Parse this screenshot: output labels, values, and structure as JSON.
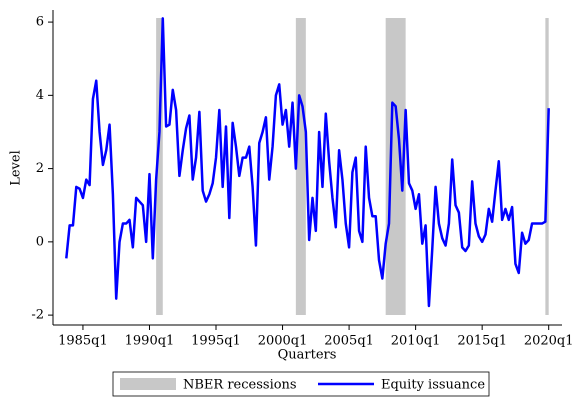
{
  "chart_data": {
    "type": "line",
    "x_label": "Quarters",
    "y_label": "Level",
    "x": [
      "1983q4",
      "1984q1",
      "1984q2",
      "1984q3",
      "1984q4",
      "1985q1",
      "1985q2",
      "1985q3",
      "1985q4",
      "1986q1",
      "1986q2",
      "1986q3",
      "1986q4",
      "1987q1",
      "1987q2",
      "1987q3",
      "1987q4",
      "1988q1",
      "1988q2",
      "1988q3",
      "1988q4",
      "1989q1",
      "1989q2",
      "1989q3",
      "1989q4",
      "1990q1",
      "1990q2",
      "1990q3",
      "1990q4",
      "1991q1",
      "1991q2",
      "1991q3",
      "1991q4",
      "1992q1",
      "1992q2",
      "1992q3",
      "1992q4",
      "1993q1",
      "1993q2",
      "1993q3",
      "1993q4",
      "1994q1",
      "1994q2",
      "1994q3",
      "1994q4",
      "1995q1",
      "1995q2",
      "1995q3",
      "1995q4",
      "1996q1",
      "1996q2",
      "1996q3",
      "1996q4",
      "1997q1",
      "1997q2",
      "1997q3",
      "1997q4",
      "1998q1",
      "1998q2",
      "1998q3",
      "1998q4",
      "1999q1",
      "1999q2",
      "1999q3",
      "1999q4",
      "2000q1",
      "2000q2",
      "2000q3",
      "2000q4",
      "2001q1",
      "2001q2",
      "2001q3",
      "2001q4",
      "2002q1",
      "2002q2",
      "2002q3",
      "2002q4",
      "2003q1",
      "2003q2",
      "2003q3",
      "2003q4",
      "2004q1",
      "2004q2",
      "2004q3",
      "2004q4",
      "2005q1",
      "2005q2",
      "2005q3",
      "2005q4",
      "2006q1",
      "2006q2",
      "2006q3",
      "2006q4",
      "2007q1",
      "2007q2",
      "2007q3",
      "2007q4",
      "2008q1",
      "2008q2",
      "2008q3",
      "2008q4",
      "2009q1",
      "2009q2",
      "2009q3",
      "2009q4",
      "2010q1",
      "2010q2",
      "2010q3",
      "2010q4",
      "2011q1",
      "2011q2",
      "2011q3",
      "2011q4",
      "2012q1",
      "2012q2",
      "2012q3",
      "2012q4",
      "2013q1",
      "2013q2",
      "2013q3",
      "2013q4",
      "2014q1",
      "2014q2",
      "2014q3",
      "2014q4",
      "2015q1",
      "2015q2",
      "2015q3",
      "2015q4",
      "2016q1",
      "2016q2",
      "2016q3",
      "2016q4",
      "2017q1",
      "2017q2",
      "2017q3",
      "2017q4",
      "2018q1",
      "2018q2",
      "2018q3",
      "2018q4",
      "2019q1",
      "2019q2",
      "2019q3",
      "2019q4",
      "2020q1"
    ],
    "series": [
      {
        "name": "Equity issuance",
        "color": "#0000ff",
        "values": [
          -0.45,
          0.45,
          0.45,
          1.5,
          1.45,
          1.2,
          1.7,
          1.55,
          3.9,
          4.4,
          3.0,
          2.1,
          2.5,
          3.2,
          1.3,
          -1.55,
          0.0,
          0.5,
          0.5,
          0.6,
          -0.15,
          1.2,
          1.1,
          1.0,
          0.0,
          1.85,
          -0.45,
          1.7,
          3.0,
          6.1,
          3.15,
          3.2,
          4.15,
          3.6,
          1.8,
          2.5,
          3.1,
          3.45,
          1.7,
          2.3,
          3.55,
          1.4,
          1.1,
          1.3,
          1.6,
          2.3,
          3.6,
          1.5,
          3.15,
          0.65,
          3.25,
          2.6,
          1.8,
          2.3,
          2.3,
          2.6,
          1.5,
          -0.1,
          2.7,
          3.0,
          3.4,
          1.7,
          2.6,
          4.0,
          4.3,
          3.2,
          3.6,
          2.6,
          3.8,
          2.0,
          4.0,
          3.7,
          3.0,
          0.05,
          1.2,
          0.3,
          3.0,
          1.5,
          3.5,
          2.2,
          1.2,
          0.4,
          2.5,
          1.7,
          0.5,
          -0.15,
          1.9,
          2.3,
          0.3,
          0.0,
          2.6,
          1.2,
          0.7,
          0.7,
          -0.5,
          -1.0,
          -0.05,
          0.5,
          3.8,
          3.7,
          2.8,
          1.4,
          3.6,
          1.6,
          1.4,
          0.9,
          1.3,
          -0.05,
          0.45,
          -1.75,
          -0.2,
          1.5,
          0.5,
          0.1,
          -0.1,
          0.5,
          2.25,
          1.0,
          0.8,
          -0.15,
          -0.25,
          -0.1,
          1.65,
          0.5,
          0.15,
          0.0,
          0.2,
          0.9,
          0.55,
          1.4,
          2.2,
          0.6,
          0.9,
          0.6,
          0.95,
          -0.6,
          -0.85,
          0.25,
          -0.05,
          0.05,
          0.5,
          0.5,
          0.5,
          0.5,
          0.55,
          3.65
        ]
      }
    ],
    "recessions": {
      "name": "NBER recessions",
      "color": "#c8c8c8",
      "periods": [
        [
          "1990q3",
          "1991q1"
        ],
        [
          "2001q1",
          "2001q4"
        ],
        [
          "2007q4",
          "2009q2"
        ],
        [
          "2019q4",
          "2020q1"
        ]
      ]
    },
    "xlim": [
      "1982q4",
      "2021q1"
    ],
    "xticks": [
      "1985q1",
      "1990q1",
      "1995q1",
      "2000q1",
      "2005q1",
      "2010q1",
      "2015q1",
      "2020q1"
    ],
    "ylim": [
      -2.27,
      6.33
    ],
    "yticks": [
      -2,
      0,
      2,
      4,
      6
    ],
    "grid": false
  }
}
